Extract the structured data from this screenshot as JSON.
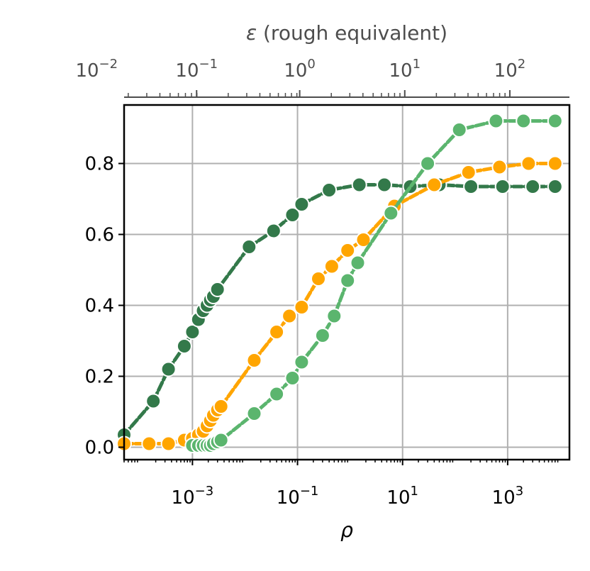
{
  "chart_data": {
    "type": "line",
    "xlabel": "ρ",
    "x_scale": "log",
    "xlim": [
      5e-05,
      15000
    ],
    "ylim": [
      -0.035,
      0.965
    ],
    "grid": true,
    "x_ticks": [
      {
        "value": 0.001,
        "base": "10",
        "exp": "−3"
      },
      {
        "value": 0.1,
        "base": "10",
        "exp": "−1"
      },
      {
        "value": 10,
        "base": "10",
        "exp": "1"
      },
      {
        "value": 1000,
        "base": "10",
        "exp": "3"
      }
    ],
    "y_ticks": [
      {
        "value": 0.0,
        "label": "0.0"
      },
      {
        "value": 0.2,
        "label": "0.2"
      },
      {
        "value": 0.4,
        "label": "0.4"
      },
      {
        "value": 0.6,
        "label": "0.6"
      },
      {
        "value": 0.8,
        "label": "0.8"
      }
    ],
    "top_axis": {
      "label_prefix": "ε",
      "label_suffix": " (rough equivalent)",
      "ticks": [
        {
          "eps": 0.01,
          "rho": 1.5e-05,
          "base": "10",
          "exp": "−2"
        },
        {
          "eps": 0.1,
          "rho": 0.0012,
          "base": "10",
          "exp": "−1"
        },
        {
          "eps": 1,
          "rho": 0.11,
          "base": "10",
          "exp": "0"
        },
        {
          "eps": 10,
          "rho": 11,
          "base": "10",
          "exp": "1"
        },
        {
          "eps": 100,
          "rho": 1100,
          "base": "10",
          "exp": "2"
        }
      ]
    },
    "series": [
      {
        "color": "#33794a",
        "x": [
          5e-05,
          0.00018,
          0.00035,
          0.0007,
          0.001,
          0.0013,
          0.0016,
          0.0019,
          0.0022,
          0.0025,
          0.003,
          0.012,
          0.035,
          0.08,
          0.12,
          0.4,
          1.5,
          4.5,
          14,
          50,
          200,
          800,
          3000,
          8000
        ],
        "y": [
          0.035,
          0.13,
          0.22,
          0.285,
          0.325,
          0.36,
          0.385,
          0.4,
          0.415,
          0.425,
          0.445,
          0.565,
          0.61,
          0.655,
          0.685,
          0.725,
          0.74,
          0.74,
          0.735,
          0.74,
          0.735,
          0.735,
          0.735,
          0.735
        ]
      },
      {
        "color": "#ffa500",
        "x": [
          5e-05,
          0.00015,
          0.00035,
          0.0007,
          0.001,
          0.0013,
          0.0016,
          0.0019,
          0.0022,
          0.0025,
          0.003,
          0.0035,
          0.015,
          0.04,
          0.07,
          0.12,
          0.25,
          0.45,
          0.9,
          1.8,
          7,
          40,
          180,
          700,
          2500,
          8000
        ],
        "y": [
          0.01,
          0.01,
          0.01,
          0.02,
          0.025,
          0.035,
          0.045,
          0.06,
          0.075,
          0.09,
          0.105,
          0.115,
          0.245,
          0.325,
          0.37,
          0.395,
          0.475,
          0.51,
          0.555,
          0.585,
          0.68,
          0.74,
          0.775,
          0.79,
          0.8,
          0.8
        ]
      },
      {
        "color": "#5bb56e",
        "x": [
          0.001,
          0.0013,
          0.0016,
          0.0019,
          0.0022,
          0.0025,
          0.003,
          0.0035,
          0.015,
          0.04,
          0.08,
          0.12,
          0.3,
          0.5,
          0.9,
          1.4,
          6,
          30,
          120,
          600,
          2000,
          8000
        ],
        "y": [
          0.005,
          0.005,
          0.005,
          0.005,
          0.005,
          0.01,
          0.015,
          0.02,
          0.095,
          0.15,
          0.195,
          0.24,
          0.315,
          0.37,
          0.47,
          0.52,
          0.66,
          0.8,
          0.895,
          0.92,
          0.92,
          0.92
        ]
      }
    ]
  }
}
